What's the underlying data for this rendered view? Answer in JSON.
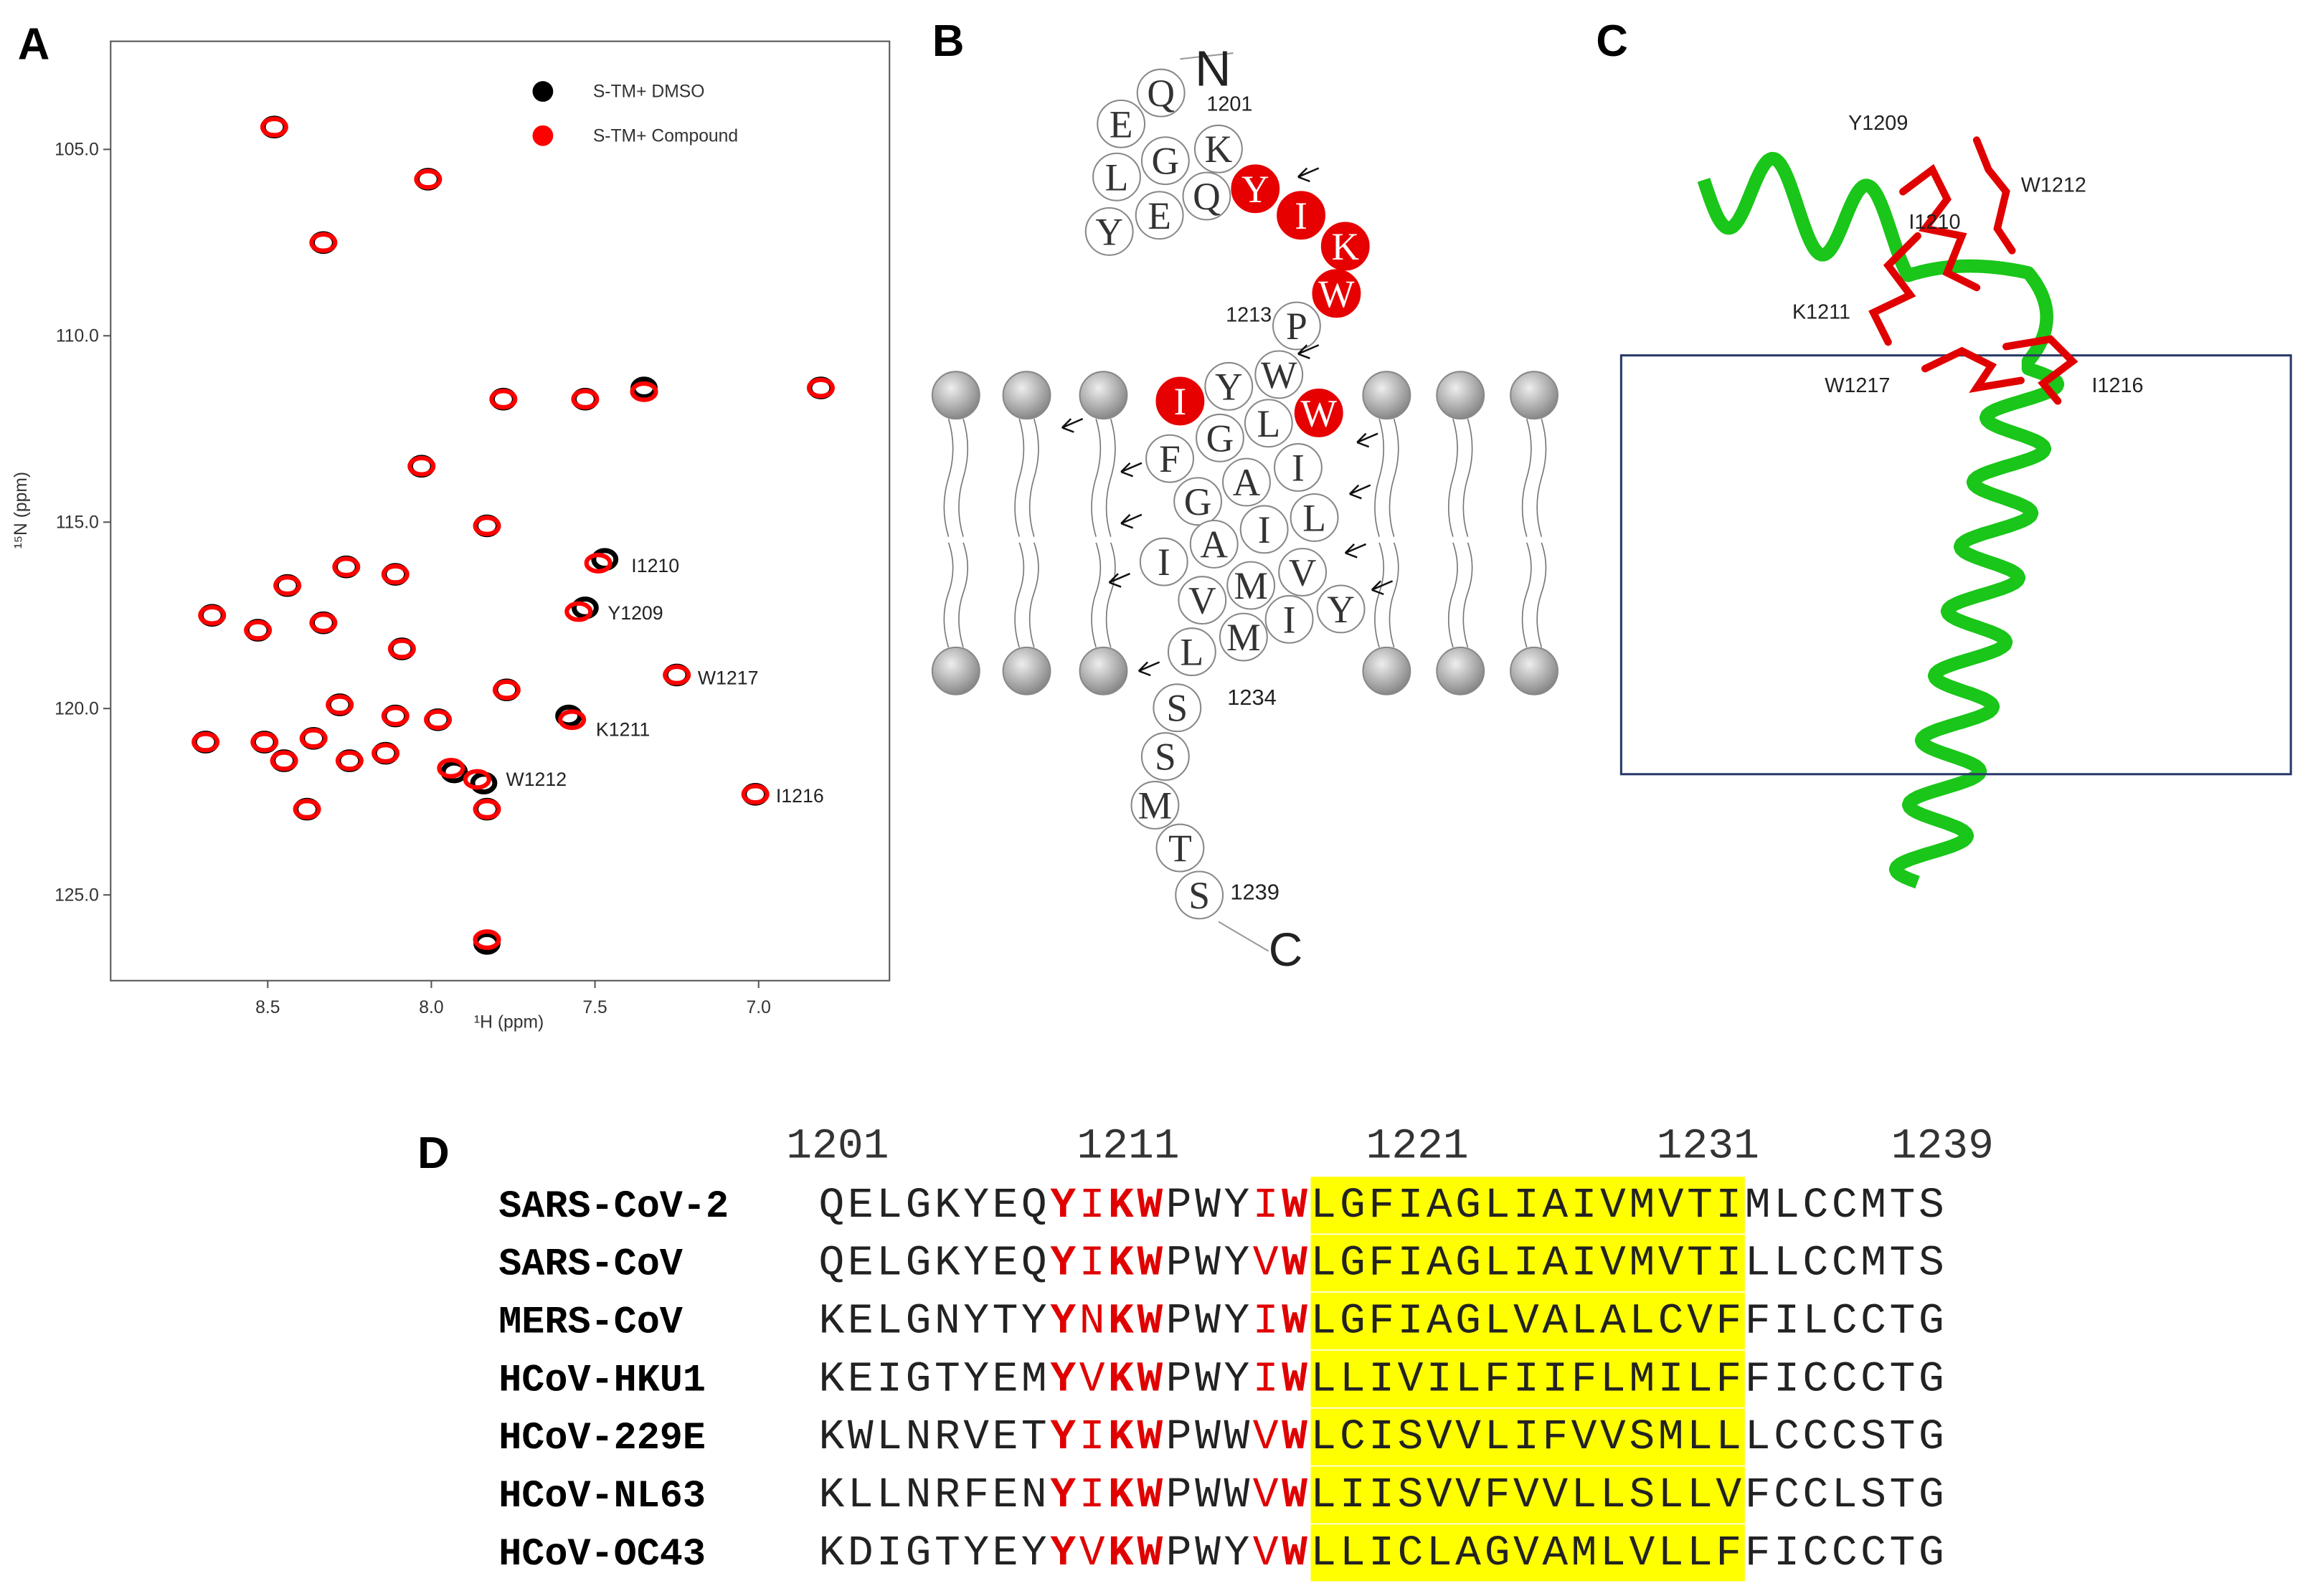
{
  "panel_labels": [
    "A",
    "B",
    "C",
    "D"
  ],
  "chart_data": {
    "type": "scatter",
    "xlabel": "¹H (ppm)",
    "ylabel": "¹⁵N (ppm)",
    "xlim": [
      8.98,
      6.6
    ],
    "ylim": [
      102.1,
      127.3
    ],
    "xticks": [
      8.5,
      {
        "value": 8.0,
        "label": "8.0"
      },
      7.5,
      {
        "value": 7.0,
        "label": "7.0"
      }
    ],
    "yticks": [
      {
        "value": 105,
        "label": "105.0"
      },
      {
        "value": 110,
        "label": "110.0"
      },
      {
        "value": 115,
        "label": "115.0"
      },
      {
        "value": 120,
        "label": "120.0"
      },
      {
        "value": 125,
        "label": "125.0"
      }
    ],
    "series": [
      {
        "name": "S-TM+ DMSO",
        "color": "#000000",
        "x": [
          8.48,
          8.01,
          8.33,
          7.78,
          7.53,
          7.35,
          6.81,
          8.03,
          7.83,
          7.47,
          7.53,
          8.44,
          8.26,
          8.11,
          8.67,
          8.53,
          8.33,
          8.09,
          8.28,
          8.11,
          7.98,
          7.77,
          7.58,
          7.25,
          8.69,
          8.51,
          8.45,
          8.36,
          8.25,
          8.14,
          7.93,
          7.84,
          7.83,
          8.38,
          7.83,
          7.01
        ],
        "y": [
          104.4,
          105.8,
          107.5,
          111.7,
          111.7,
          111.4,
          111.4,
          113.5,
          115.1,
          116.0,
          117.3,
          116.7,
          116.2,
          116.4,
          117.5,
          117.9,
          117.7,
          118.4,
          119.9,
          120.2,
          120.3,
          119.5,
          120.2,
          119.1,
          120.9,
          120.9,
          121.4,
          120.8,
          121.4,
          121.2,
          121.7,
          122.0,
          122.7,
          122.7,
          126.3,
          122.3
        ]
      },
      {
        "name": "S-TM+ Compound",
        "color": "#ff0000",
        "x": [
          8.48,
          8.01,
          8.33,
          7.78,
          7.53,
          7.35,
          6.81,
          8.03,
          7.83,
          7.49,
          7.55,
          8.44,
          8.26,
          8.11,
          8.67,
          8.53,
          8.33,
          8.09,
          8.28,
          8.11,
          7.98,
          7.77,
          7.57,
          7.25,
          8.69,
          8.51,
          8.45,
          8.36,
          8.25,
          8.14,
          7.94,
          7.86,
          7.83,
          8.38,
          7.83,
          7.01
        ],
        "y": [
          104.4,
          105.8,
          107.5,
          111.7,
          111.7,
          111.5,
          111.4,
          113.5,
          115.1,
          116.1,
          117.4,
          116.7,
          116.2,
          116.4,
          117.5,
          117.9,
          117.7,
          118.4,
          119.9,
          120.2,
          120.3,
          119.5,
          120.3,
          119.1,
          120.9,
          120.9,
          121.4,
          120.8,
          121.4,
          121.2,
          121.6,
          121.9,
          122.7,
          122.7,
          126.2,
          122.3
        ]
      }
    ],
    "annotations": [
      "I1210",
      "Y1209",
      "W1217",
      "K1211",
      "W1212",
      "I1216"
    ]
  },
  "topology": {
    "residues": [
      {
        "letter": "Q"
      },
      {
        "letter": "E"
      },
      {
        "letter": "G"
      },
      {
        "letter": "K"
      },
      {
        "letter": "L"
      },
      {
        "letter": "Q"
      },
      {
        "letter": "E"
      },
      {
        "letter": "Y"
      },
      {
        "letter": "Y",
        "color": "#e60000"
      },
      {
        "letter": "I",
        "color": "#e60000"
      },
      {
        "letter": "K",
        "color": "#e60000"
      },
      {
        "letter": "W",
        "color": "#e60000"
      },
      {
        "letter": "P"
      },
      {
        "letter": "W"
      },
      {
        "letter": "Y"
      },
      {
        "letter": "I",
        "color": "#e60000"
      },
      {
        "letter": "W",
        "color": "#e60000"
      },
      {
        "letter": "L"
      },
      {
        "letter": "G"
      },
      {
        "letter": "F"
      },
      {
        "letter": "I"
      },
      {
        "letter": "A"
      },
      {
        "letter": "G"
      },
      {
        "letter": "L"
      },
      {
        "letter": "I"
      },
      {
        "letter": "A"
      },
      {
        "letter": "I"
      },
      {
        "letter": "V"
      },
      {
        "letter": "M"
      },
      {
        "letter": "V"
      },
      {
        "letter": "Y"
      },
      {
        "letter": "I"
      },
      {
        "letter": "M"
      },
      {
        "letter": "L"
      },
      {
        "letter": "S"
      },
      {
        "letter": "S"
      },
      {
        "letter": "M"
      },
      {
        "letter": "T"
      },
      {
        "letter": "S"
      }
    ],
    "labels": [
      "N",
      "1201",
      "1213",
      "1234",
      "1239",
      "C"
    ]
  },
  "structure": {
    "labels": [
      "Y1209",
      "W1212",
      "I1210",
      "K1211",
      "W1217",
      "I1216"
    ]
  },
  "alignment": {
    "numbering": [
      "1201",
      "1211",
      "1221",
      "1231",
      "1239"
    ],
    "rows": [
      {
        "name": "SARS-CoV-2",
        "sequence": "QELGKYEQYIKWPWYIWLGFIAGLIAIVMVTIMLCCMTS"
      },
      {
        "name": "SARS-CoV",
        "sequence": "QELGKYEQYIKWPWYVWLGFIAGLIAIVMVTILLCCMTS"
      },
      {
        "name": "MERS-CoV",
        "sequence": "KELGNYTYYNKWPWYIWLGFIAGLVALALCVFFILCCTG"
      },
      {
        "name": "HCoV-HKU1",
        "sequence": "KEIGTYEMYVKWPWYIWLLIVILFIIFLMILFFICCCTG"
      },
      {
        "name": "HCoV-229E",
        "sequence": "KWLNRVETYIKWPWWVWLCISVVLIFVVSMLLLCCCSTG"
      },
      {
        "name": "HCoV-NL63",
        "sequence": "KLLNRFENYIKWPWWVWLIISVVFVVLLSLLVFCCLSTG"
      },
      {
        "name": "HCoV-OC43",
        "sequence": "KDIGTYEYYVKWPWYVWLLICLAGVAMLVLLFFICCCTG"
      }
    ]
  }
}
